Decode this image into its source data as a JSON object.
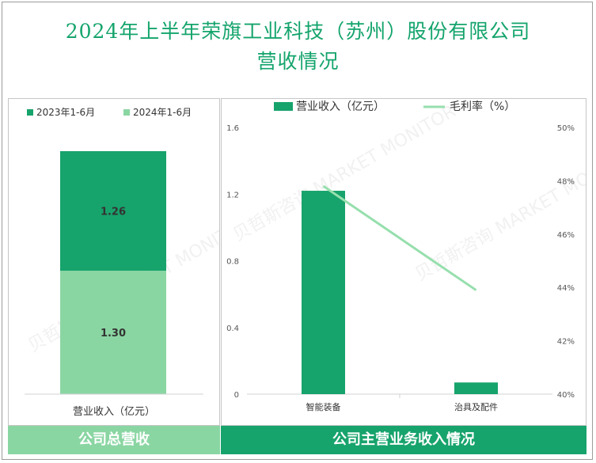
{
  "title_line1": "2024年上半年荣旗工业科技（苏州）股份有限公司",
  "title_line2": "营收情况",
  "footer_left": "公司总营收",
  "footer_right": "公司主营业务收入情况",
  "watermark": "贝哲斯咨询 MARKET MONITOR",
  "colors": {
    "dark_green": "#17a36c",
    "light_green": "#8ad6a3",
    "line_green": "#96dfad"
  },
  "chart_data": [
    {
      "type": "bar",
      "stacked": true,
      "categories": [
        "营业收入（亿元）"
      ],
      "series": [
        {
          "name": "2024年1-6月",
          "values": [
            1.3
          ],
          "color": "#8ad6a3"
        },
        {
          "name": "2023年1-6月",
          "values": [
            1.26
          ],
          "color": "#17a36c"
        }
      ],
      "legend_position": "top",
      "data_labels": [
        "1.30",
        "1.26"
      ]
    },
    {
      "type": "bar",
      "categories": [
        "智能装备",
        "治具及配件"
      ],
      "series": [
        {
          "name": "营业收入（亿元）",
          "type": "bar",
          "axis": "left",
          "values": [
            1.22,
            0.07
          ],
          "color": "#17a36c"
        },
        {
          "name": "毛利率（%）",
          "type": "line",
          "axis": "right",
          "values": [
            47.8,
            43.9
          ],
          "color": "#96dfad"
        }
      ],
      "y_left": {
        "min": 0,
        "max": 1.6,
        "ticks": [
          "0",
          "0.4",
          "0.8",
          "1.2",
          "1.6"
        ]
      },
      "y_right": {
        "min": 40,
        "max": 50,
        "ticks": [
          "40%",
          "42%",
          "44%",
          "46%",
          "48%",
          "50%"
        ]
      },
      "legend_position": "top"
    }
  ]
}
